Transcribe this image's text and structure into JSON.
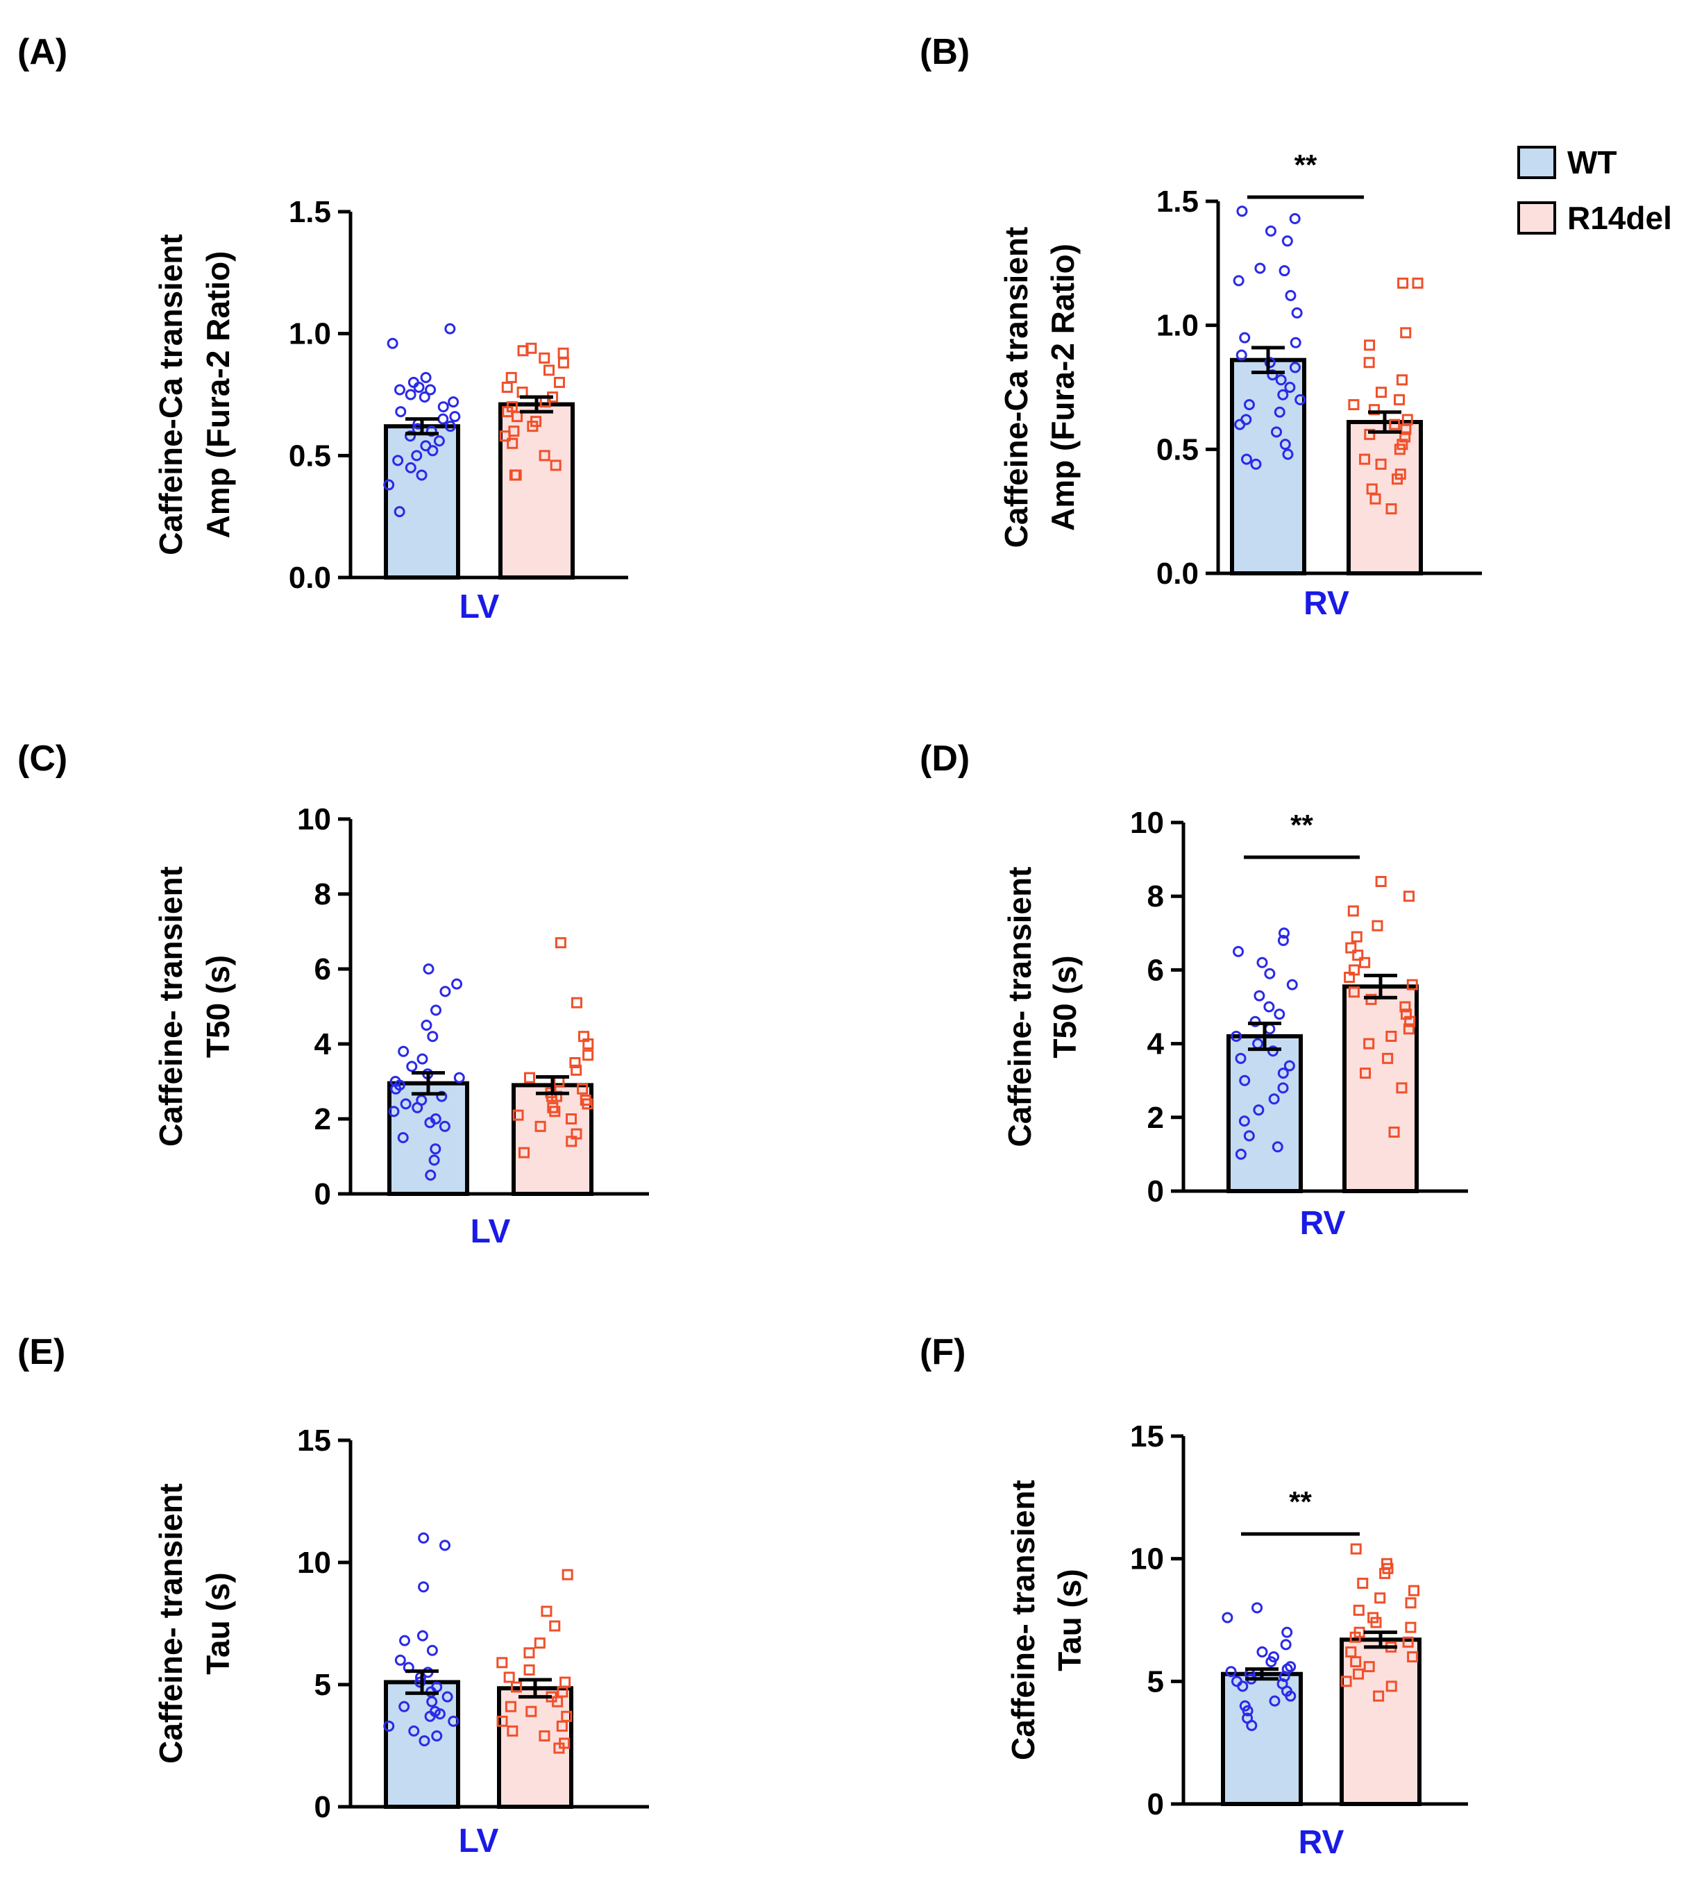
{
  "legend": {
    "entries": [
      {
        "label": "WT",
        "fill": "#c5dbf1",
        "marker": "circle",
        "marker_color": "#2a2ae8"
      },
      {
        "label": "R14del",
        "fill": "#fbe0de",
        "marker": "square",
        "marker_color": "#f0502a"
      }
    ]
  },
  "colors": {
    "wt_fill": "#c5dbf1",
    "r14_fill": "#fbe0de",
    "wt_point": "#2a2ae8",
    "r14_point": "#f0502a",
    "xlabel": "#1a1ae6",
    "axis": "#000000"
  },
  "chart_data": [
    {
      "panel": "(A)",
      "type": "bar",
      "xlabel": "LV",
      "ylabel": [
        "Caffeine-Ca transient",
        "Amp (Fura-2 Ratio)"
      ],
      "ylim": [
        0,
        1.5
      ],
      "yticks": [
        "0.0",
        "0.5",
        "1.0",
        "1.5"
      ],
      "ytick_values": [
        0,
        0.5,
        1.0,
        1.5
      ],
      "significance": null,
      "series": [
        {
          "name": "WT",
          "mean": 0.62,
          "sem": 0.03,
          "points": [
            1.02,
            0.96,
            0.82,
            0.8,
            0.78,
            0.77,
            0.77,
            0.75,
            0.74,
            0.72,
            0.7,
            0.68,
            0.66,
            0.65,
            0.63,
            0.62,
            0.61,
            0.6,
            0.58,
            0.56,
            0.54,
            0.52,
            0.5,
            0.48,
            0.45,
            0.42,
            0.38,
            0.27
          ]
        },
        {
          "name": "R14del",
          "mean": 0.71,
          "sem": 0.03,
          "points": [
            0.94,
            0.93,
            0.92,
            0.9,
            0.88,
            0.85,
            0.82,
            0.8,
            0.78,
            0.76,
            0.74,
            0.72,
            0.7,
            0.68,
            0.66,
            0.64,
            0.62,
            0.6,
            0.58,
            0.55,
            0.5,
            0.46,
            0.42,
            0.42
          ]
        }
      ]
    },
    {
      "panel": "(B)",
      "type": "bar",
      "xlabel": "RV",
      "ylabel": [
        "Caffeine-Ca transient",
        "Amp (Fura-2 Ratio)"
      ],
      "ylim": [
        0,
        1.5
      ],
      "yticks": [
        "0.0",
        "0.5",
        "1.0",
        "1.5"
      ],
      "ytick_values": [
        0,
        0.5,
        1.0,
        1.5
      ],
      "significance": "**",
      "series": [
        {
          "name": "WT",
          "mean": 0.86,
          "sem": 0.05,
          "points": [
            1.46,
            1.43,
            1.38,
            1.34,
            1.23,
            1.22,
            1.18,
            1.12,
            1.05,
            0.95,
            0.93,
            0.88,
            0.85,
            0.83,
            0.8,
            0.78,
            0.75,
            0.72,
            0.7,
            0.68,
            0.65,
            0.62,
            0.6,
            0.57,
            0.52,
            0.48,
            0.46,
            0.44
          ]
        },
        {
          "name": "R14del",
          "mean": 0.61,
          "sem": 0.04,
          "points": [
            1.17,
            1.17,
            0.97,
            0.92,
            0.85,
            0.78,
            0.73,
            0.7,
            0.68,
            0.66,
            0.62,
            0.6,
            0.58,
            0.56,
            0.55,
            0.52,
            0.5,
            0.46,
            0.44,
            0.4,
            0.38,
            0.34,
            0.3,
            0.26
          ]
        }
      ]
    },
    {
      "panel": "(C)",
      "type": "bar",
      "xlabel": "LV",
      "ylabel": [
        "Caffeine- transient",
        "T50 (s)"
      ],
      "ylim": [
        0,
        10
      ],
      "yticks": [
        "0",
        "2",
        "4",
        "6",
        "8",
        "10"
      ],
      "ytick_values": [
        0,
        2,
        4,
        6,
        8,
        10
      ],
      "significance": null,
      "series": [
        {
          "name": "WT",
          "mean": 2.95,
          "sem": 0.28,
          "points": [
            6.0,
            5.6,
            5.4,
            4.9,
            4.5,
            4.2,
            3.8,
            3.6,
            3.4,
            3.2,
            3.1,
            3.0,
            2.9,
            2.8,
            2.6,
            2.5,
            2.4,
            2.3,
            2.2,
            2.0,
            1.9,
            1.8,
            1.5,
            1.2,
            0.9,
            0.5
          ]
        },
        {
          "name": "R14del",
          "mean": 2.9,
          "sem": 0.22,
          "points": [
            6.7,
            5.1,
            4.2,
            4.0,
            3.7,
            3.5,
            3.3,
            3.1,
            3.0,
            2.8,
            2.7,
            2.6,
            2.6,
            2.5,
            2.4,
            2.3,
            2.2,
            2.1,
            2.0,
            1.8,
            1.6,
            1.4,
            1.1
          ]
        }
      ]
    },
    {
      "panel": "(D)",
      "type": "bar",
      "xlabel": "RV",
      "ylabel": [
        "Caffeine- transient",
        "T50 (s)"
      ],
      "ylim": [
        0,
        10
      ],
      "yticks": [
        "0",
        "2",
        "4",
        "6",
        "8",
        "10"
      ],
      "ytick_values": [
        0,
        2,
        4,
        6,
        8,
        10
      ],
      "significance": "**",
      "series": [
        {
          "name": "WT",
          "mean": 4.2,
          "sem": 0.35,
          "points": [
            7.0,
            6.8,
            6.5,
            6.2,
            5.9,
            5.6,
            5.3,
            5.0,
            4.8,
            4.6,
            4.4,
            4.2,
            4.0,
            3.8,
            3.6,
            3.4,
            3.2,
            3.0,
            2.8,
            2.5,
            2.2,
            1.9,
            1.5,
            1.2,
            1.0
          ]
        },
        {
          "name": "R14del",
          "mean": 5.55,
          "sem": 0.3,
          "points": [
            8.4,
            8.0,
            7.6,
            7.2,
            6.9,
            6.6,
            6.4,
            6.2,
            6.0,
            5.8,
            5.6,
            5.4,
            5.2,
            5.0,
            4.8,
            4.6,
            4.4,
            4.2,
            4.0,
            3.6,
            3.2,
            2.8,
            1.6
          ]
        }
      ]
    },
    {
      "panel": "(E)",
      "type": "bar",
      "xlabel": "LV",
      "ylabel": [
        "Caffeine- transient",
        "Tau (s)"
      ],
      "ylim": [
        0,
        15
      ],
      "yticks": [
        "0",
        "5",
        "10",
        "15"
      ],
      "ytick_values": [
        0,
        5,
        10,
        15
      ],
      "significance": null,
      "series": [
        {
          "name": "WT",
          "mean": 5.1,
          "sem": 0.45,
          "points": [
            11.0,
            10.7,
            9.0,
            7.0,
            6.8,
            6.4,
            6.0,
            5.7,
            5.5,
            5.3,
            5.1,
            4.9,
            4.7,
            4.5,
            4.3,
            4.1,
            3.9,
            3.8,
            3.7,
            3.5,
            3.3,
            3.1,
            2.9,
            2.7
          ]
        },
        {
          "name": "R14del",
          "mean": 4.85,
          "sem": 0.35,
          "points": [
            9.5,
            8.0,
            7.4,
            6.7,
            6.3,
            5.9,
            5.6,
            5.3,
            5.1,
            4.9,
            4.7,
            4.5,
            4.3,
            4.1,
            3.9,
            3.7,
            3.5,
            3.3,
            3.1,
            2.9,
            2.6,
            2.4
          ]
        }
      ]
    },
    {
      "panel": "(F)",
      "type": "bar",
      "xlabel": "RV",
      "ylabel": [
        "Caffeine- transient",
        "Tau (s)"
      ],
      "ylim": [
        0,
        15
      ],
      "yticks": [
        "0",
        "5",
        "10",
        "15"
      ],
      "ytick_values": [
        0,
        5,
        10,
        15
      ],
      "significance": "**",
      "series": [
        {
          "name": "WT",
          "mean": 5.3,
          "sem": 0.2,
          "points": [
            8.0,
            7.6,
            7.0,
            6.5,
            6.2,
            6.0,
            5.8,
            5.6,
            5.5,
            5.4,
            5.3,
            5.2,
            5.1,
            5.0,
            4.9,
            4.8,
            4.6,
            4.4,
            4.2,
            4.0,
            3.8,
            3.5,
            3.2
          ]
        },
        {
          "name": "R14del",
          "mean": 6.7,
          "sem": 0.3,
          "points": [
            10.4,
            9.8,
            9.6,
            9.4,
            9.0,
            8.7,
            8.4,
            8.2,
            7.9,
            7.6,
            7.4,
            7.2,
            7.0,
            6.8,
            6.6,
            6.4,
            6.2,
            6.0,
            5.8,
            5.6,
            5.3,
            5.0,
            4.8,
            4.4
          ]
        }
      ]
    }
  ]
}
